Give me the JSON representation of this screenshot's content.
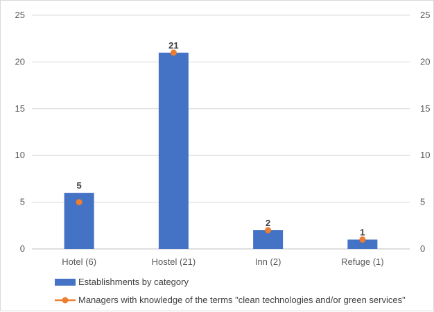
{
  "chart_data": {
    "type": "bar",
    "title": "",
    "xlabel": "",
    "ylabel": "",
    "categories": [
      "Hotel (6)",
      "Hostel (21)",
      "Inn (2)",
      "Refuge (1)"
    ],
    "series": [
      {
        "name": "Establishments by category",
        "type": "bar",
        "values": [
          6,
          21,
          2,
          1
        ],
        "color": "#4472C4"
      },
      {
        "name": "Managers with knowledge of the terms \"clean technologies and/or green services\"",
        "type": "line",
        "values": [
          5,
          21,
          2,
          1
        ],
        "color": "#ED7D31",
        "data_labels": [
          "5",
          "21",
          "2",
          "1"
        ]
      }
    ],
    "ylim": [
      0,
      25
    ],
    "y_ticks": [
      "0",
      "5",
      "10",
      "15",
      "20",
      "25"
    ],
    "secondary_ylim": [
      0,
      25
    ],
    "secondary_y_ticks": [
      "0",
      "5",
      "10",
      "15",
      "20",
      "25"
    ],
    "grid": true,
    "legend_position": "bottom-left"
  }
}
